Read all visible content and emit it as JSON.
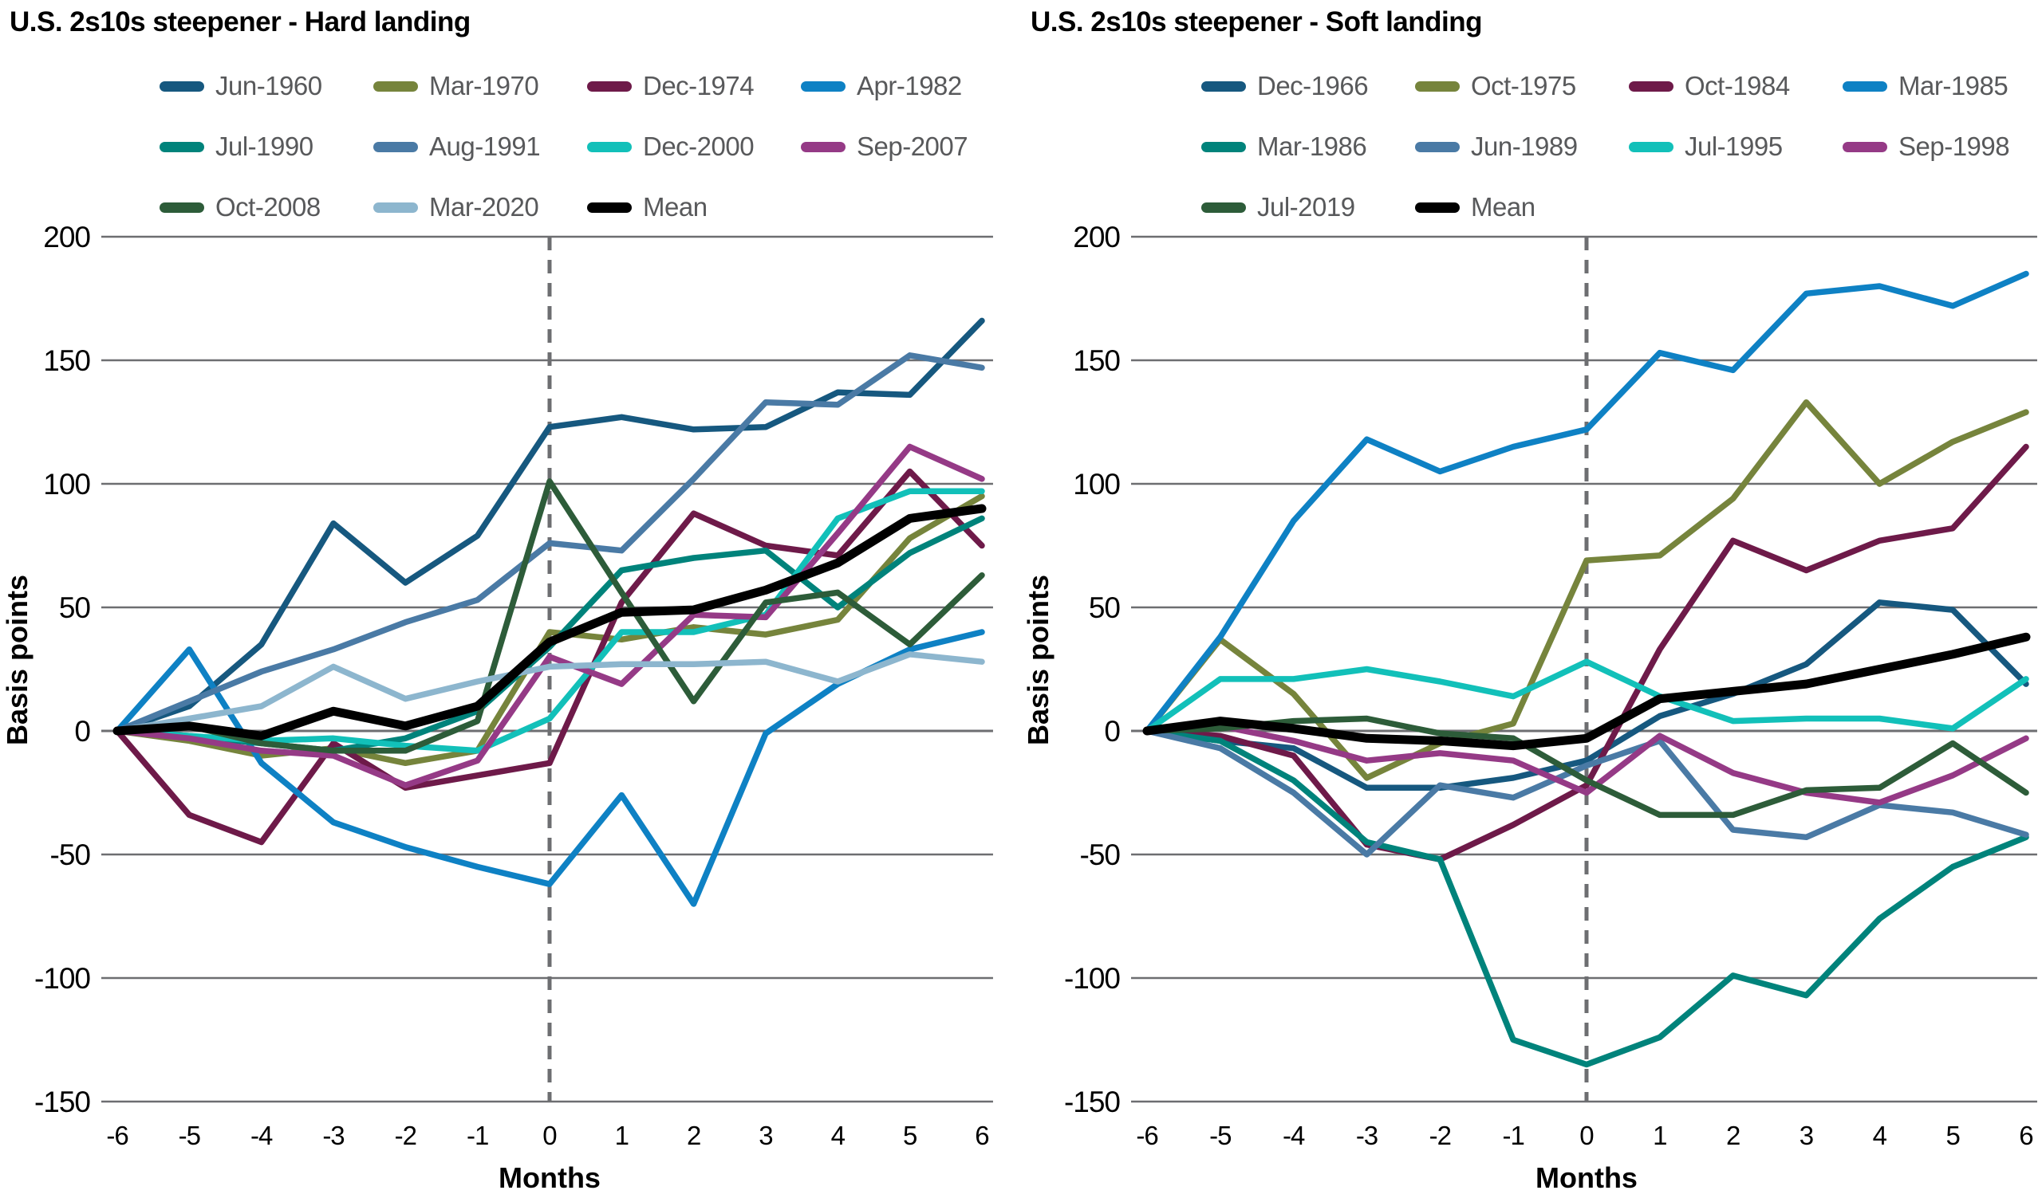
{
  "chart_data": {
    "type": "line",
    "description": "Two side-by-side line charts of U.S. 2s10s yield-curve steepener paths around recession start (month 0), in basis points, months -6 to +6.",
    "charts": [
      {
        "title": "U.S. 2s10s steepener - Hard landing",
        "xlabel": "Months",
        "ylabel": "Basis points",
        "x": [
          -6,
          -5,
          -4,
          -3,
          -2,
          -1,
          0,
          1,
          2,
          3,
          4,
          5,
          6
        ],
        "ylim": [
          -150,
          200
        ],
        "yticks": [
          200,
          150,
          100,
          50,
          0,
          -50,
          -100,
          -150
        ],
        "event_line_x": 0,
        "legend_position": "top",
        "grid": true,
        "series": [
          {
            "name": "Jun-1960",
            "color": "#16587f",
            "values": [
              0,
              10,
              35,
              84,
              60,
              79,
              123,
              127,
              122,
              123,
              137,
              136,
              166
            ]
          },
          {
            "name": "Mar-1970",
            "color": "#76843c",
            "values": [
              0,
              -4,
              -10,
              -7,
              -13,
              -8,
              40,
              37,
              42,
              39,
              45,
              78,
              95
            ]
          },
          {
            "name": "Dec-1974",
            "color": "#6e1a49",
            "values": [
              0,
              -34,
              -45,
              -5,
              -23,
              -18,
              -13,
              52,
              88,
              75,
              71,
              105,
              75
            ]
          },
          {
            "name": "Apr-1982",
            "color": "#0e81c4",
            "values": [
              0,
              33,
              -13,
              -37,
              -47,
              -55,
              -62,
              -26,
              -70,
              -1,
              19,
              33,
              40
            ]
          },
          {
            "name": "Jul-1990",
            "color": "#00837b",
            "values": [
              0,
              -2,
              -5,
              -8,
              -3,
              8,
              34,
              65,
              70,
              73,
              50,
              72,
              86
            ]
          },
          {
            "name": "Aug-1991",
            "color": "#4a7aa5",
            "values": [
              0,
              12,
              24,
              33,
              44,
              53,
              76,
              73,
              102,
              133,
              132,
              152,
              147
            ]
          },
          {
            "name": "Dec-2000",
            "color": "#12c0b9",
            "values": [
              0,
              -2,
              -4,
              -3,
              -6,
              -8,
              5,
              40,
              40,
              47,
              86,
              97,
              97
            ]
          },
          {
            "name": "Sep-2007",
            "color": "#953a86",
            "values": [
              0,
              -3,
              -8,
              -10,
              -22,
              -12,
              30,
              19,
              47,
              46,
              80,
              115,
              102
            ]
          },
          {
            "name": "Oct-2008",
            "color": "#2d5c39",
            "values": [
              0,
              2,
              -5,
              -8,
              -8,
              4,
              101,
              56,
              12,
              52,
              56,
              35,
              63
            ]
          },
          {
            "name": "Mar-2020",
            "color": "#8db6ce",
            "values": [
              0,
              5,
              10,
              26,
              13,
              20,
              26,
              27,
              27,
              28,
              20,
              31,
              28
            ]
          },
          {
            "name": "Mean",
            "color": "#000000",
            "values": [
              0,
              2,
              -2,
              8,
              2,
              10,
              36,
              48,
              49,
              57,
              68,
              86,
              90
            ],
            "emphasis": true
          }
        ]
      },
      {
        "title": "U.S. 2s10s steepener - Soft landing",
        "xlabel": "Months",
        "ylabel": "Basis points",
        "x": [
          -6,
          -5,
          -4,
          -3,
          -2,
          -1,
          0,
          1,
          2,
          3,
          4,
          5,
          6
        ],
        "ylim": [
          -150,
          200
        ],
        "yticks": [
          200,
          150,
          100,
          50,
          0,
          -50,
          -100,
          -150
        ],
        "event_line_x": 0,
        "legend_position": "top",
        "grid": true,
        "series": [
          {
            "name": "Dec-1966",
            "color": "#16587f",
            "values": [
              0,
              -4,
              -7,
              -23,
              -23,
              -19,
              -12,
              6,
              15,
              27,
              52,
              49,
              19
            ]
          },
          {
            "name": "Oct-1975",
            "color": "#76843c",
            "values": [
              0,
              37,
              15,
              -19,
              -5,
              3,
              69,
              71,
              94,
              133,
              100,
              117,
              129
            ]
          },
          {
            "name": "Oct-1984",
            "color": "#6e1a49",
            "values": [
              0,
              -2,
              -10,
              -46,
              -52,
              -38,
              -22,
              33,
              77,
              65,
              77,
              82,
              115
            ]
          },
          {
            "name": "Mar-1985",
            "color": "#0e81c4",
            "values": [
              0,
              38,
              85,
              118,
              105,
              115,
              122,
              153,
              146,
              177,
              180,
              172,
              185
            ]
          },
          {
            "name": "Mar-1986",
            "color": "#00837b",
            "values": [
              0,
              -4,
              -20,
              -45,
              -52,
              -125,
              -135,
              -124,
              -99,
              -107,
              -76,
              -55,
              -43
            ]
          },
          {
            "name": "Jun-1989",
            "color": "#4a7aa5",
            "values": [
              0,
              -7,
              -25,
              -50,
              -22,
              -27,
              -14,
              -4,
              -40,
              -43,
              -30,
              -33,
              -42
            ]
          },
          {
            "name": "Jul-1995",
            "color": "#12c0b9",
            "values": [
              0,
              21,
              21,
              25,
              20,
              14,
              28,
              14,
              4,
              5,
              5,
              1,
              21
            ]
          },
          {
            "name": "Sep-1998",
            "color": "#953a86",
            "values": [
              0,
              2,
              -4,
              -12,
              -9,
              -12,
              -25,
              -2,
              -17,
              -25,
              -29,
              -18,
              -3
            ]
          },
          {
            "name": "Jul-2019",
            "color": "#2d5c39",
            "values": [
              0,
              1,
              4,
              5,
              -1,
              -3,
              -20,
              -34,
              -34,
              -24,
              -23,
              -5,
              -25
            ]
          },
          {
            "name": "Mean",
            "color": "#000000",
            "values": [
              0,
              4,
              1,
              -3,
              -4,
              -6,
              -3,
              13,
              16,
              19,
              25,
              31,
              38
            ],
            "emphasis": true
          }
        ]
      }
    ],
    "style": {
      "grid_color": "#6d6e71",
      "event_line_color": "#6d6e71",
      "legend_text_color": "#58595b",
      "tick_label_color": "#000000"
    }
  }
}
